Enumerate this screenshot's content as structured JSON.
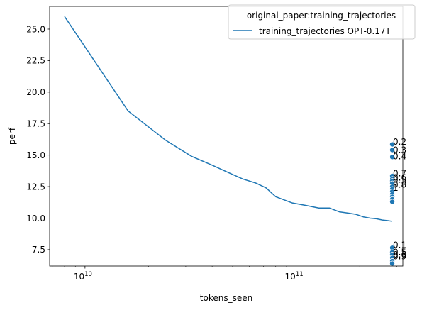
{
  "chart_data": {
    "type": "line",
    "title": "",
    "xlabel": "tokens_seen",
    "ylabel": "perf",
    "xscale": "log",
    "xlim": [
      6800000000.0,
      320000000000.0
    ],
    "ylim": [
      6.2,
      26.8
    ],
    "grid": false,
    "legend": {
      "placement": "top-right",
      "title": "original_paper:training_trajectories",
      "entries": [
        "training_trajectories OPT-0.17T"
      ]
    },
    "x_ticks": [
      {
        "value": 10000000000.0,
        "label": "10",
        "exp": "10"
      },
      {
        "value": 100000000000.0,
        "label": "10",
        "exp": "11"
      }
    ],
    "y_ticks": [
      {
        "value": 7.5,
        "label": "7.5"
      },
      {
        "value": 10.0,
        "label": "10.0"
      },
      {
        "value": 12.5,
        "label": "12.5"
      },
      {
        "value": 15.0,
        "label": "15.0"
      },
      {
        "value": 17.5,
        "label": "17.5"
      },
      {
        "value": 20.0,
        "label": "20.0"
      },
      {
        "value": 22.5,
        "label": "22.5"
      },
      {
        "value": 25.0,
        "label": "25.0"
      }
    ],
    "series": [
      {
        "name": "training_trajectories OPT-0.17T",
        "color": "#1f77b4",
        "x": [
          8000000000.0,
          16000000000.0,
          24000000000.0,
          32000000000.0,
          40000000000.0,
          48000000000.0,
          56000000000.0,
          64000000000.0,
          72000000000.0,
          80000000000.0,
          96000000000.0,
          112000000000.0,
          128000000000.0,
          144000000000.0,
          160000000000.0,
          176000000000.0,
          192000000000.0,
          208000000000.0,
          224000000000.0,
          240000000000.0,
          256000000000.0,
          272000000000.0,
          285000000000.0
        ],
        "y": [
          26.0,
          18.5,
          16.2,
          14.9,
          14.2,
          13.6,
          13.1,
          12.8,
          12.4,
          11.7,
          11.2,
          11.0,
          10.8,
          10.8,
          10.5,
          10.4,
          10.3,
          10.1,
          10.0,
          9.95,
          9.85,
          9.8,
          9.75
        ]
      }
    ],
    "scatter": {
      "color": "#1f77b4",
      "x": 285000000000.0,
      "y": [
        15.85,
        15.4,
        14.85,
        13.35,
        13.1,
        12.95,
        12.75,
        12.5,
        12.3,
        12.1,
        11.9,
        11.7,
        11.5,
        11.3,
        7.65,
        7.3,
        7.1,
        6.85,
        6.6,
        6.4
      ]
    },
    "annotations": [
      {
        "text": "0.2",
        "y": 16.05
      },
      {
        "text": "0.3",
        "y": 15.4
      },
      {
        "text": "0.4",
        "y": 14.9
      },
      {
        "text": "0.7",
        "y": 13.55
      },
      {
        "text": "0.6",
        "y": 13.2
      },
      {
        "text": "0.5",
        "y": 13.05
      },
      {
        "text": "0.8",
        "y": 12.65
      },
      {
        "text": "1",
        "y": 12.4
      },
      {
        "text": "0.1",
        "y": 7.85
      },
      {
        "text": "0.5",
        "y": 7.3
      },
      {
        "text": "0.6",
        "y": 7.1
      },
      {
        "text": "0.9",
        "y": 6.95
      }
    ]
  }
}
